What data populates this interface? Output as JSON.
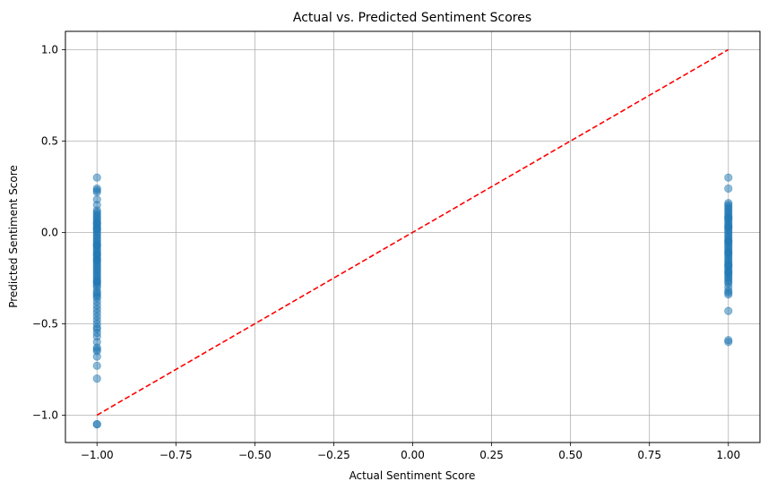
{
  "chart_data": {
    "type": "scatter",
    "title": "Actual vs. Predicted Sentiment Scores",
    "xlabel": "Actual Sentiment Score",
    "ylabel": "Predicted Sentiment Score",
    "xlim": [
      -1.1,
      1.1
    ],
    "ylim": [
      -1.15,
      1.1
    ],
    "x_ticks": [
      -1.0,
      -0.75,
      -0.5,
      -0.25,
      0.0,
      0.25,
      0.5,
      0.75,
      1.0
    ],
    "x_tick_labels": [
      "−1.00",
      "−0.75",
      "−0.50",
      "−0.25",
      "0.00",
      "0.25",
      "0.50",
      "0.75",
      "1.00"
    ],
    "y_ticks": [
      -1.0,
      -0.5,
      0.0,
      0.5,
      1.0
    ],
    "y_tick_labels": [
      "−1.0",
      "−0.5",
      "0.0",
      "0.5",
      "1.0"
    ],
    "grid": true,
    "point_color": "#1f77b4",
    "point_alpha": 0.5,
    "series": [
      {
        "kind": "points",
        "x": [
          -1,
          -1,
          -1,
          -1,
          -1,
          -1,
          -1,
          -1,
          -1,
          -1,
          -1,
          -1,
          -1,
          -1,
          -1,
          -1,
          -1,
          -1,
          -1,
          -1,
          -1,
          -1,
          -1,
          -1,
          -1,
          -1,
          -1,
          -1,
          -1,
          -1,
          -1,
          -1,
          -1,
          -1,
          -1,
          -1,
          -1,
          -1,
          -1,
          -1,
          -1,
          -1,
          -1,
          -1,
          -1,
          -1,
          -1,
          -1,
          -1,
          -1,
          -1,
          -1,
          -1,
          -1,
          -1,
          -1,
          -1,
          -1,
          -1,
          -1,
          -1,
          -1,
          -1,
          -1,
          -1,
          -1,
          -1,
          -1,
          -1,
          -1,
          -1,
          -1,
          -1,
          -1,
          -1,
          -1,
          -1,
          -1,
          -1,
          -1,
          1,
          1,
          1,
          1,
          1,
          1,
          1,
          1,
          1,
          1,
          1,
          1,
          1,
          1,
          1,
          1,
          1,
          1,
          1,
          1,
          1,
          1,
          1,
          1,
          1,
          1,
          1,
          1,
          1,
          1,
          1,
          1,
          1,
          1,
          1,
          1,
          1,
          1,
          1,
          1,
          1,
          1,
          1,
          1,
          1,
          1,
          1,
          1,
          1,
          1,
          1,
          1,
          1,
          1,
          1,
          1,
          1,
          1,
          1,
          1
        ],
        "y": [
          0.3,
          0.24,
          0.23,
          0.22,
          0.18,
          0.15,
          0.12,
          0.11,
          0.1,
          0.09,
          0.08,
          0.07,
          0.06,
          0.05,
          0.04,
          0.03,
          0.02,
          0.01,
          0.0,
          -0.01,
          -0.02,
          -0.03,
          -0.04,
          -0.05,
          -0.06,
          -0.07,
          -0.08,
          -0.09,
          -0.1,
          -0.11,
          -0.12,
          -0.13,
          -0.14,
          -0.15,
          -0.16,
          -0.17,
          -0.18,
          -0.19,
          -0.2,
          -0.21,
          -0.22,
          -0.23,
          -0.24,
          -0.25,
          -0.26,
          -0.27,
          -0.28,
          -0.29,
          -0.3,
          -0.32,
          -0.34,
          -0.35,
          -0.36,
          -0.38,
          -0.4,
          -0.42,
          -0.44,
          -0.46,
          -0.48,
          -0.5,
          -0.52,
          -0.53,
          -0.55,
          -0.57,
          -0.6,
          -0.64,
          -0.65,
          -0.68,
          -0.73,
          -0.8,
          -1.05,
          -1.05,
          -0.63,
          -0.33,
          -0.27,
          -0.12,
          0.05,
          0.02,
          -0.07,
          -0.15,
          0.3,
          0.24,
          0.16,
          0.15,
          0.13,
          0.12,
          0.11,
          0.1,
          0.09,
          0.08,
          0.07,
          0.06,
          0.05,
          0.04,
          0.03,
          0.02,
          0.01,
          0.0,
          -0.01,
          -0.02,
          -0.03,
          -0.04,
          -0.05,
          -0.06,
          -0.07,
          -0.08,
          -0.09,
          -0.1,
          -0.11,
          -0.12,
          -0.13,
          -0.14,
          -0.15,
          -0.16,
          -0.17,
          -0.18,
          -0.19,
          -0.2,
          -0.21,
          -0.22,
          -0.23,
          -0.24,
          -0.25,
          -0.26,
          -0.28,
          -0.3,
          -0.32,
          -0.33,
          -0.34,
          -0.43,
          -0.59,
          -0.6,
          0.14,
          -0.05,
          -0.18,
          -0.27,
          0.03,
          -0.11,
          -0.22,
          0.08
        ]
      },
      {
        "kind": "reference-line",
        "x": [
          -1.0,
          1.0
        ],
        "y": [
          -1.0,
          1.0
        ],
        "color": "#ff0000",
        "style": "dashed"
      }
    ]
  }
}
